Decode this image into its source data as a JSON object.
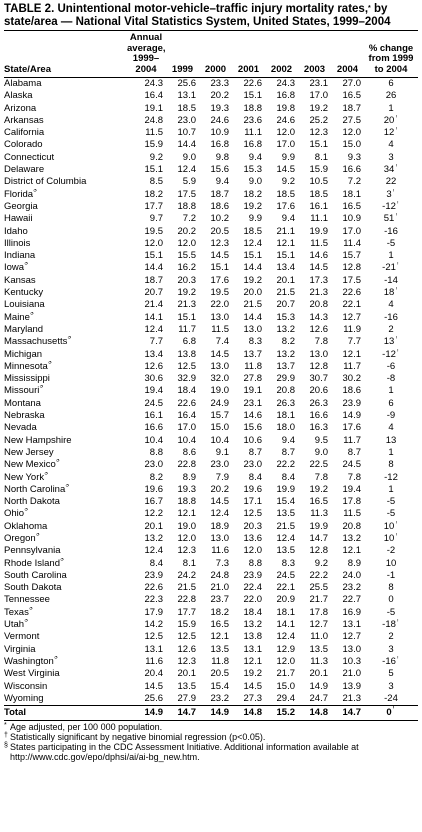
{
  "title": {
    "prefix": "TABLE 2. Unintentional motor-vehicle–traffic injury mortality rates,",
    "marker": "*",
    "suffix": " by state/area — National Vital Statistics System, United States, 1999–2004"
  },
  "columns": {
    "state": "State/Area",
    "avg_line1": "Annual",
    "avg_line2": "average,",
    "avg_line3": "1999–",
    "avg_line4": "2004",
    "y1999": "1999",
    "y2000": "2000",
    "y2001": "2001",
    "y2002": "2002",
    "y2003": "2003",
    "y2004": "2004",
    "chg_line1": "% change",
    "chg_line2": "from 1999",
    "chg_line3": "to 2004"
  },
  "rows": [
    {
      "state": "Alabama",
      "sup": "",
      "avg": "24.3",
      "y1999": "25.6",
      "y2000": "23.3",
      "y2001": "22.6",
      "y2002": "24.3",
      "y2003": "23.1",
      "y2004": "27.0",
      "chg": "6",
      "chg_sup": ""
    },
    {
      "state": "Alaska",
      "sup": "",
      "avg": "16.4",
      "y1999": "13.1",
      "y2000": "20.2",
      "y2001": "15.1",
      "y2002": "16.8",
      "y2003": "17.0",
      "y2004": "16.5",
      "chg": "26",
      "chg_sup": ""
    },
    {
      "state": "Arizona",
      "sup": "",
      "avg": "19.1",
      "y1999": "18.5",
      "y2000": "19.3",
      "y2001": "18.8",
      "y2002": "19.8",
      "y2003": "19.2",
      "y2004": "18.7",
      "chg": "1",
      "chg_sup": ""
    },
    {
      "state": "Arkansas",
      "sup": "",
      "avg": "24.8",
      "y1999": "23.0",
      "y2000": "24.6",
      "y2001": "23.6",
      "y2002": "24.6",
      "y2003": "25.2",
      "y2004": "27.5",
      "chg": "20",
      "chg_sup": "†"
    },
    {
      "state": "California",
      "sup": "",
      "avg": "11.5",
      "y1999": "10.7",
      "y2000": "10.9",
      "y2001": "11.1",
      "y2002": "12.0",
      "y2003": "12.3",
      "y2004": "12.0",
      "chg": "12",
      "chg_sup": "†"
    },
    {
      "state": "Colorado",
      "sup": "",
      "avg": "15.9",
      "y1999": "14.4",
      "y2000": "16.8",
      "y2001": "16.8",
      "y2002": "17.0",
      "y2003": "15.1",
      "y2004": "15.0",
      "chg": "4",
      "chg_sup": ""
    },
    {
      "state": "Connecticut",
      "sup": "",
      "avg": "9.2",
      "y1999": "9.0",
      "y2000": "9.8",
      "y2001": "9.4",
      "y2002": "9.9",
      "y2003": "8.1",
      "y2004": "9.3",
      "chg": "3",
      "chg_sup": ""
    },
    {
      "state": "Delaware",
      "sup": "",
      "avg": "15.1",
      "y1999": "12.4",
      "y2000": "15.6",
      "y2001": "15.3",
      "y2002": "14.5",
      "y2003": "15.9",
      "y2004": "16.6",
      "chg": "34",
      "chg_sup": "†"
    },
    {
      "state": "District of Columbia",
      "sup": "",
      "avg": "8.5",
      "y1999": "5.9",
      "y2000": "9.4",
      "y2001": "9.0",
      "y2002": "9.2",
      "y2003": "10.5",
      "y2004": "7.2",
      "chg": "22",
      "chg_sup": ""
    },
    {
      "state": "Florida",
      "sup": "§",
      "avg": "18.2",
      "y1999": "17.5",
      "y2000": "18.7",
      "y2001": "18.2",
      "y2002": "18.5",
      "y2003": "18.5",
      "y2004": "18.1",
      "chg": "3",
      "chg_sup": "†"
    },
    {
      "state": "Georgia",
      "sup": "",
      "avg": "17.7",
      "y1999": "18.8",
      "y2000": "18.6",
      "y2001": "19.2",
      "y2002": "17.6",
      "y2003": "16.1",
      "y2004": "16.5",
      "chg": "-12",
      "chg_sup": "†"
    },
    {
      "state": "Hawaii",
      "sup": "",
      "avg": "9.7",
      "y1999": "7.2",
      "y2000": "10.2",
      "y2001": "9.9",
      "y2002": "9.4",
      "y2003": "11.1",
      "y2004": "10.9",
      "chg": "51",
      "chg_sup": "†"
    },
    {
      "state": "Idaho",
      "sup": "",
      "avg": "19.5",
      "y1999": "20.2",
      "y2000": "20.5",
      "y2001": "18.5",
      "y2002": "21.1",
      "y2003": "19.9",
      "y2004": "17.0",
      "chg": "-16",
      "chg_sup": ""
    },
    {
      "state": "Illinois",
      "sup": "",
      "avg": "12.0",
      "y1999": "12.0",
      "y2000": "12.3",
      "y2001": "12.4",
      "y2002": "12.1",
      "y2003": "11.5",
      "y2004": "11.4",
      "chg": "-5",
      "chg_sup": ""
    },
    {
      "state": "Indiana",
      "sup": "",
      "avg": "15.1",
      "y1999": "15.5",
      "y2000": "14.5",
      "y2001": "15.1",
      "y2002": "15.1",
      "y2003": "14.6",
      "y2004": "15.7",
      "chg": "1",
      "chg_sup": ""
    },
    {
      "state": "Iowa",
      "sup": "§",
      "avg": "14.4",
      "y1999": "16.2",
      "y2000": "15.1",
      "y2001": "14.4",
      "y2002": "13.4",
      "y2003": "14.5",
      "y2004": "12.8",
      "chg": "-21",
      "chg_sup": "†"
    },
    {
      "state": "Kansas",
      "sup": "",
      "avg": "18.7",
      "y1999": "20.3",
      "y2000": "17.6",
      "y2001": "19.2",
      "y2002": "20.1",
      "y2003": "17.3",
      "y2004": "17.5",
      "chg": "-14",
      "chg_sup": ""
    },
    {
      "state": "Kentucky",
      "sup": "",
      "avg": "20.7",
      "y1999": "19.2",
      "y2000": "19.5",
      "y2001": "20.0",
      "y2002": "21.5",
      "y2003": "21.3",
      "y2004": "22.6",
      "chg": "18",
      "chg_sup": "†"
    },
    {
      "state": "Louisiana",
      "sup": "",
      "avg": "21.4",
      "y1999": "21.3",
      "y2000": "22.0",
      "y2001": "21.5",
      "y2002": "20.7",
      "y2003": "20.8",
      "y2004": "22.1",
      "chg": "4",
      "chg_sup": ""
    },
    {
      "state": "Maine",
      "sup": "§",
      "avg": "14.1",
      "y1999": "15.1",
      "y2000": "13.0",
      "y2001": "14.4",
      "y2002": "15.3",
      "y2003": "14.3",
      "y2004": "12.7",
      "chg": "-16",
      "chg_sup": ""
    },
    {
      "state": "Maryland",
      "sup": "",
      "avg": "12.4",
      "y1999": "11.7",
      "y2000": "11.5",
      "y2001": "13.0",
      "y2002": "13.2",
      "y2003": "12.6",
      "y2004": "11.9",
      "chg": "2",
      "chg_sup": ""
    },
    {
      "state": "Massachusetts",
      "sup": "§",
      "avg": "7.7",
      "y1999": "6.8",
      "y2000": "7.4",
      "y2001": "8.3",
      "y2002": "8.2",
      "y2003": "7.8",
      "y2004": "7.7",
      "chg": "13",
      "chg_sup": "†"
    },
    {
      "state": "Michigan",
      "sup": "",
      "avg": "13.4",
      "y1999": "13.8",
      "y2000": "14.5",
      "y2001": "13.7",
      "y2002": "13.2",
      "y2003": "13.0",
      "y2004": "12.1",
      "chg": "-12",
      "chg_sup": "†"
    },
    {
      "state": "Minnesota",
      "sup": "§",
      "avg": "12.6",
      "y1999": "12.5",
      "y2000": "13.0",
      "y2001": "11.8",
      "y2002": "13.7",
      "y2003": "12.8",
      "y2004": "11.7",
      "chg": "-6",
      "chg_sup": ""
    },
    {
      "state": "Mississippi",
      "sup": "",
      "avg": "30.6",
      "y1999": "32.9",
      "y2000": "32.0",
      "y2001": "27.8",
      "y2002": "29.9",
      "y2003": "30.7",
      "y2004": "30.2",
      "chg": "-8",
      "chg_sup": ""
    },
    {
      "state": "Missouri",
      "sup": "§",
      "avg": "19.4",
      "y1999": "18.4",
      "y2000": "19.0",
      "y2001": "19.1",
      "y2002": "20.8",
      "y2003": "20.6",
      "y2004": "18.6",
      "chg": "1",
      "chg_sup": ""
    },
    {
      "state": "Montana",
      "sup": "",
      "avg": "24.5",
      "y1999": "22.6",
      "y2000": "24.9",
      "y2001": "23.1",
      "y2002": "26.3",
      "y2003": "26.3",
      "y2004": "23.9",
      "chg": "6",
      "chg_sup": ""
    },
    {
      "state": "Nebraska",
      "sup": "",
      "avg": "16.1",
      "y1999": "16.4",
      "y2000": "15.7",
      "y2001": "14.6",
      "y2002": "18.1",
      "y2003": "16.6",
      "y2004": "14.9",
      "chg": "-9",
      "chg_sup": ""
    },
    {
      "state": "Nevada",
      "sup": "",
      "avg": "16.6",
      "y1999": "17.0",
      "y2000": "15.0",
      "y2001": "15.6",
      "y2002": "18.0",
      "y2003": "16.3",
      "y2004": "17.6",
      "chg": "4",
      "chg_sup": ""
    },
    {
      "state": "New Hampshire",
      "sup": "",
      "avg": "10.4",
      "y1999": "10.4",
      "y2000": "10.4",
      "y2001": "10.6",
      "y2002": "9.4",
      "y2003": "9.5",
      "y2004": "11.7",
      "chg": "13",
      "chg_sup": ""
    },
    {
      "state": "New Jersey",
      "sup": "",
      "avg": "8.8",
      "y1999": "8.6",
      "y2000": "9.1",
      "y2001": "8.7",
      "y2002": "8.7",
      "y2003": "9.0",
      "y2004": "8.7",
      "chg": "1",
      "chg_sup": ""
    },
    {
      "state": "New Mexico",
      "sup": "§",
      "avg": "23.0",
      "y1999": "22.8",
      "y2000": "23.0",
      "y2001": "23.0",
      "y2002": "22.2",
      "y2003": "22.5",
      "y2004": "24.5",
      "chg": "8",
      "chg_sup": ""
    },
    {
      "state": "New York",
      "sup": "§",
      "avg": "8.2",
      "y1999": "8.9",
      "y2000": "7.9",
      "y2001": "8.4",
      "y2002": "8.4",
      "y2003": "7.8",
      "y2004": "7.8",
      "chg": "-12",
      "chg_sup": ""
    },
    {
      "state": "North Carolina",
      "sup": "§",
      "avg": "19.6",
      "y1999": "19.3",
      "y2000": "20.2",
      "y2001": "19.6",
      "y2002": "19.9",
      "y2003": "19.2",
      "y2004": "19.4",
      "chg": "1",
      "chg_sup": ""
    },
    {
      "state": "North Dakota",
      "sup": "",
      "avg": "16.7",
      "y1999": "18.8",
      "y2000": "14.5",
      "y2001": "17.1",
      "y2002": "15.4",
      "y2003": "16.5",
      "y2004": "17.8",
      "chg": "-5",
      "chg_sup": ""
    },
    {
      "state": "Ohio",
      "sup": "§",
      "avg": "12.2",
      "y1999": "12.1",
      "y2000": "12.4",
      "y2001": "12.5",
      "y2002": "13.5",
      "y2003": "11.3",
      "y2004": "11.5",
      "chg": "-5",
      "chg_sup": ""
    },
    {
      "state": "Oklahoma",
      "sup": "",
      "avg": "20.1",
      "y1999": "19.0",
      "y2000": "18.9",
      "y2001": "20.3",
      "y2002": "21.5",
      "y2003": "19.9",
      "y2004": "20.8",
      "chg": "10",
      "chg_sup": "†"
    },
    {
      "state": "Oregon",
      "sup": "§",
      "avg": "13.2",
      "y1999": "12.0",
      "y2000": "13.0",
      "y2001": "13.6",
      "y2002": "12.4",
      "y2003": "14.7",
      "y2004": "13.2",
      "chg": "10",
      "chg_sup": "†"
    },
    {
      "state": "Pennsylvania",
      "sup": "",
      "avg": "12.4",
      "y1999": "12.3",
      "y2000": "11.6",
      "y2001": "12.0",
      "y2002": "13.5",
      "y2003": "12.8",
      "y2004": "12.1",
      "chg": "-2",
      "chg_sup": ""
    },
    {
      "state": "Rhode Island",
      "sup": "§",
      "avg": "8.4",
      "y1999": "8.1",
      "y2000": "7.3",
      "y2001": "8.8",
      "y2002": "8.3",
      "y2003": "9.2",
      "y2004": "8.9",
      "chg": "10",
      "chg_sup": ""
    },
    {
      "state": "South Carolina",
      "sup": "",
      "avg": "23.9",
      "y1999": "24.2",
      "y2000": "24.8",
      "y2001": "23.9",
      "y2002": "24.5",
      "y2003": "22.2",
      "y2004": "24.0",
      "chg": "-1",
      "chg_sup": ""
    },
    {
      "state": "South Dakota",
      "sup": "",
      "avg": "22.6",
      "y1999": "21.5",
      "y2000": "21.0",
      "y2001": "22.4",
      "y2002": "22.1",
      "y2003": "25.5",
      "y2004": "23.2",
      "chg": "8",
      "chg_sup": ""
    },
    {
      "state": "Tennessee",
      "sup": "",
      "avg": "22.3",
      "y1999": "22.8",
      "y2000": "23.7",
      "y2001": "22.0",
      "y2002": "20.9",
      "y2003": "21.7",
      "y2004": "22.7",
      "chg": "0",
      "chg_sup": ""
    },
    {
      "state": "Texas",
      "sup": "§",
      "avg": "17.9",
      "y1999": "17.7",
      "y2000": "18.2",
      "y2001": "18.4",
      "y2002": "18.1",
      "y2003": "17.8",
      "y2004": "16.9",
      "chg": "-5",
      "chg_sup": ""
    },
    {
      "state": "Utah",
      "sup": "§",
      "avg": "14.2",
      "y1999": "15.9",
      "y2000": "16.5",
      "y2001": "13.2",
      "y2002": "14.1",
      "y2003": "12.7",
      "y2004": "13.1",
      "chg": "-18",
      "chg_sup": "†"
    },
    {
      "state": "Vermont",
      "sup": "",
      "avg": "12.5",
      "y1999": "12.5",
      "y2000": "12.1",
      "y2001": "13.8",
      "y2002": "12.4",
      "y2003": "11.0",
      "y2004": "12.7",
      "chg": "2",
      "chg_sup": ""
    },
    {
      "state": "Virginia",
      "sup": "",
      "avg": "13.1",
      "y1999": "12.6",
      "y2000": "13.5",
      "y2001": "13.1",
      "y2002": "12.9",
      "y2003": "13.5",
      "y2004": "13.0",
      "chg": "3",
      "chg_sup": ""
    },
    {
      "state": "Washington",
      "sup": "§",
      "avg": "11.6",
      "y1999": "12.3",
      "y2000": "11.8",
      "y2001": "12.1",
      "y2002": "12.0",
      "y2003": "11.3",
      "y2004": "10.3",
      "chg": "-16",
      "chg_sup": "†"
    },
    {
      "state": "West Virginia",
      "sup": "",
      "avg": "20.4",
      "y1999": "20.1",
      "y2000": "20.5",
      "y2001": "19.2",
      "y2002": "21.7",
      "y2003": "20.1",
      "y2004": "21.0",
      "chg": "5",
      "chg_sup": ""
    },
    {
      "state": "Wisconsin",
      "sup": "",
      "avg": "14.5",
      "y1999": "13.5",
      "y2000": "15.4",
      "y2001": "14.5",
      "y2002": "15.0",
      "y2003": "14.9",
      "y2004": "13.9",
      "chg": "3",
      "chg_sup": ""
    },
    {
      "state": "Wyoming",
      "sup": "",
      "avg": "25.6",
      "y1999": "27.9",
      "y2000": "23.2",
      "y2001": "27.3",
      "y2002": "29.4",
      "y2003": "24.7",
      "y2004": "21.3",
      "chg": "-24",
      "chg_sup": ""
    }
  ],
  "total": {
    "state": "Total",
    "avg": "14.9",
    "y1999": "14.7",
    "y2000": "14.9",
    "y2001": "14.8",
    "y2002": "15.2",
    "y2003": "14.8",
    "y2004": "14.7",
    "chg": "0",
    "chg_sup": "†"
  },
  "footnotes": [
    {
      "mark": "*",
      "text": "Age adjusted, per 100 000 population."
    },
    {
      "mark": "†",
      "text": "Statistically significant by negative binomial regression (p<0.05)."
    },
    {
      "mark": "§",
      "text": "States participating in the CDC Assessment Initiative. Additional information available at http://www.cdc.gov/epo/dphsi/ai/ai-bg_new.htm."
    }
  ]
}
